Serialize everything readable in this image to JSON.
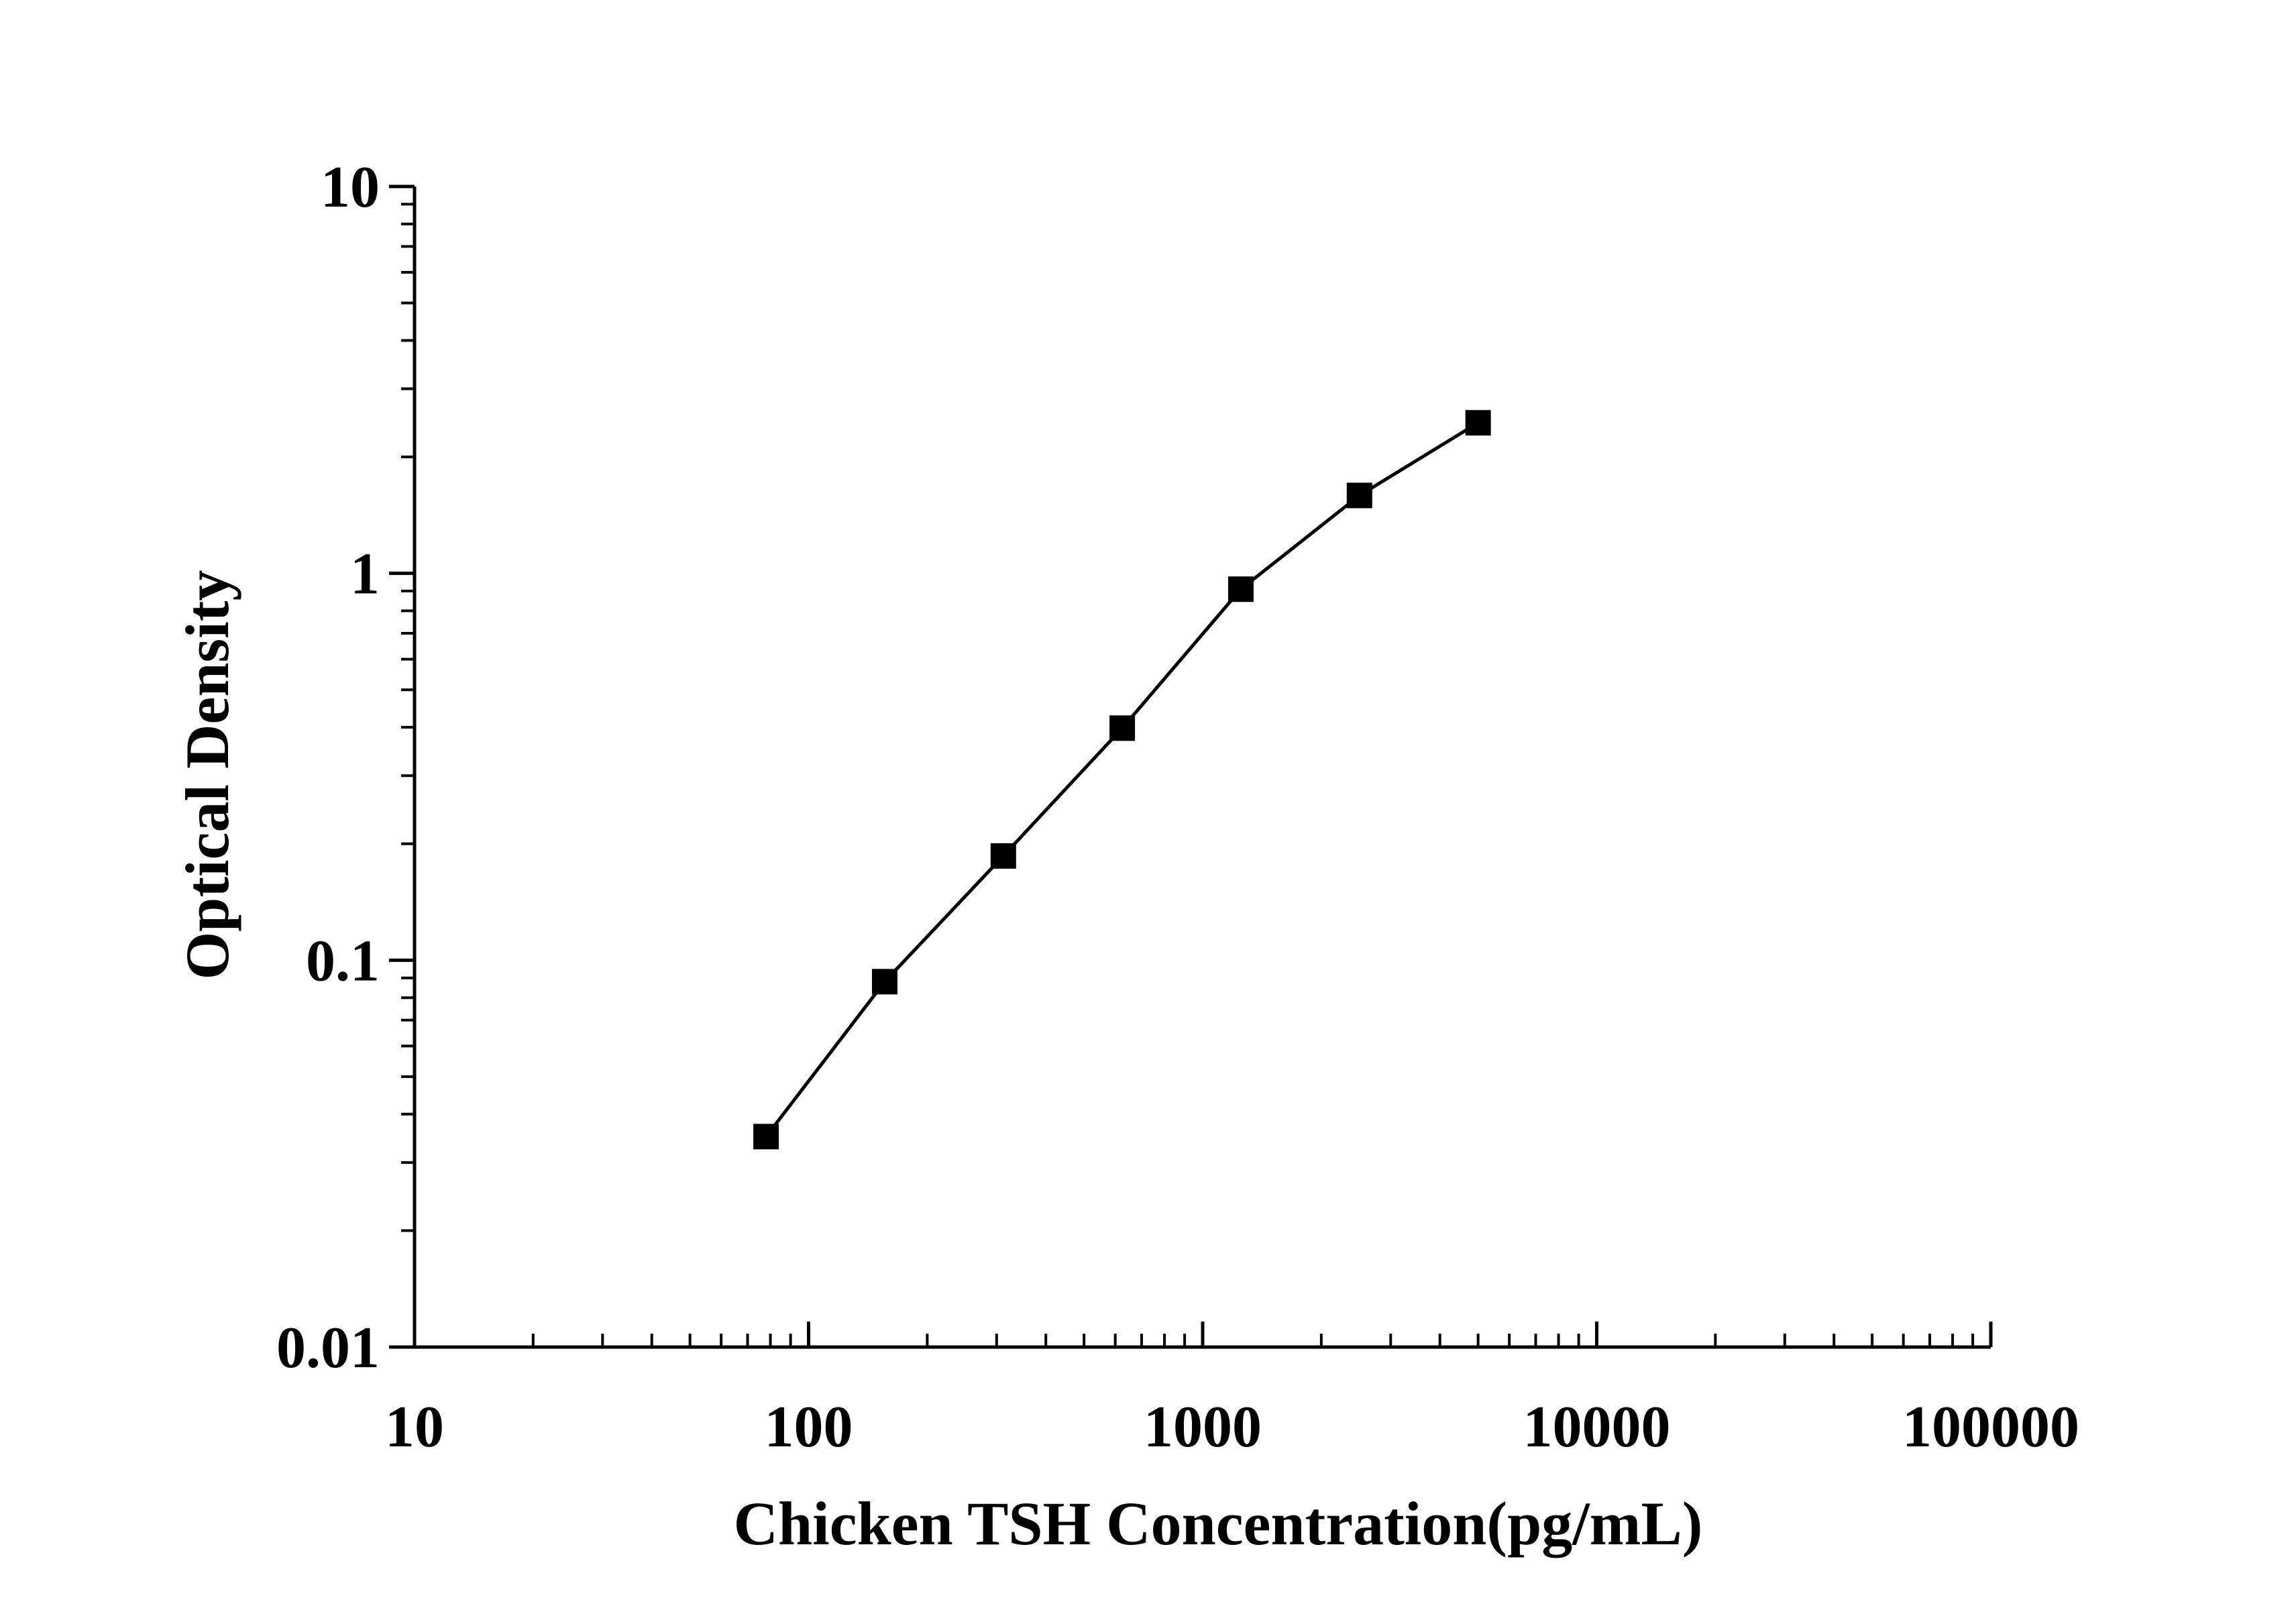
{
  "chart_data": {
    "type": "line",
    "xlabel": "Chicken TSH Concentration(pg/mL)",
    "ylabel": "Optical Density",
    "x_scale": "log",
    "y_scale": "log",
    "xlim": [
      10,
      100000
    ],
    "ylim": [
      0.01,
      10
    ],
    "x_ticks": [
      10,
      100,
      1000,
      10000,
      100000
    ],
    "x_tick_labels": [
      "10",
      "100",
      "1000",
      "10000",
      "100000"
    ],
    "y_ticks": [
      0.01,
      0.1,
      1,
      10
    ],
    "y_tick_labels": [
      "0.01",
      "0.1",
      "1",
      "10"
    ],
    "grid": false,
    "marker": "square",
    "series": [
      {
        "x": [
          78,
          156,
          312,
          625,
          1250,
          2500,
          5000
        ],
        "y": [
          0.035,
          0.088,
          0.186,
          0.398,
          0.91,
          1.59,
          2.45
        ]
      }
    ],
    "colors": {
      "line": "#000000",
      "marker": "#000000",
      "axis": "#000000"
    }
  }
}
